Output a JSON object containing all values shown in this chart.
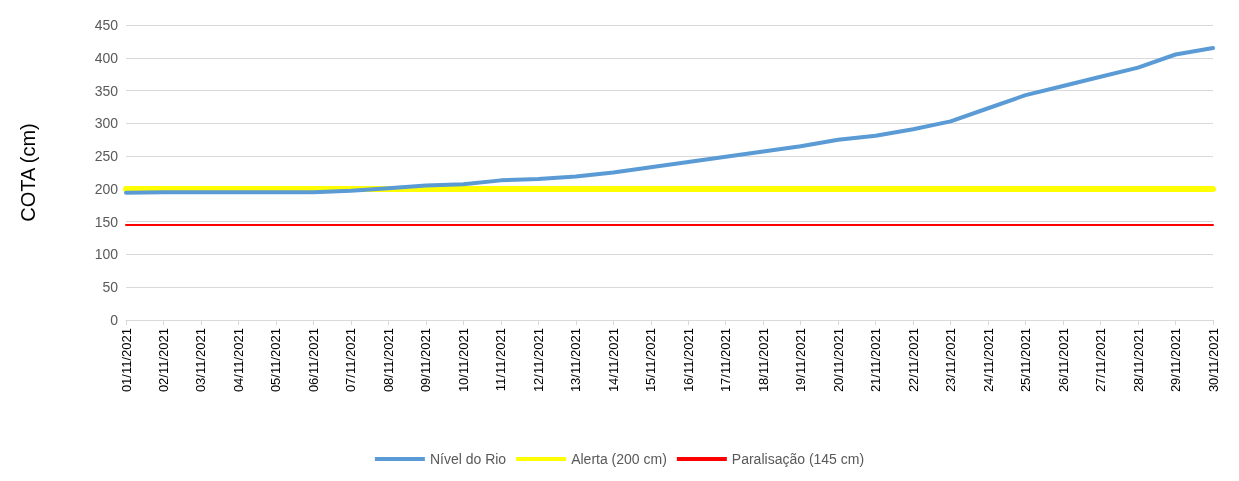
{
  "chart_data": {
    "type": "line",
    "ylabel": "COTA (cm)",
    "categories": [
      "01/11/2021",
      "02/11/2021",
      "03/11/2021",
      "04/11/2021",
      "05/11/2021",
      "06/11/2021",
      "07/11/2021",
      "08/11/2021",
      "09/11/2021",
      "10/11/2021",
      "11/11/2021",
      "12/11/2021",
      "13/11/2021",
      "14/11/2021",
      "15/11/2021",
      "16/11/2021",
      "17/11/2021",
      "18/11/2021",
      "19/11/2021",
      "20/11/2021",
      "21/11/2021",
      "22/11/2021",
      "23/11/2021",
      "24/11/2021",
      "25/11/2021",
      "26/11/2021",
      "27/11/2021",
      "28/11/2021",
      "29/11/2021",
      "30/11/2021"
    ],
    "series": [
      {
        "name": "Nível do Rio",
        "color": "#5b9bd5",
        "values": [
          194,
          195,
          195,
          195,
          195,
          195,
          197,
          201,
          205,
          207,
          213,
          215,
          219,
          225,
          233,
          241,
          249,
          257,
          265,
          275,
          281,
          291,
          303,
          323,
          343,
          357,
          371,
          385,
          405,
          415
        ]
      },
      {
        "name": "Alerta (200 cm)",
        "color": "#ffff00",
        "values": [
          200,
          200,
          200,
          200,
          200,
          200,
          200,
          200,
          200,
          200,
          200,
          200,
          200,
          200,
          200,
          200,
          200,
          200,
          200,
          200,
          200,
          200,
          200,
          200,
          200,
          200,
          200,
          200,
          200,
          200
        ]
      },
      {
        "name": "Paralisação (145 cm)",
        "color": "#ff0000",
        "values": [
          145,
          145,
          145,
          145,
          145,
          145,
          145,
          145,
          145,
          145,
          145,
          145,
          145,
          145,
          145,
          145,
          145,
          145,
          145,
          145,
          145,
          145,
          145,
          145,
          145,
          145,
          145,
          145,
          145,
          145
        ]
      }
    ],
    "ylim": [
      0,
      450
    ],
    "yticks": [
      0,
      50,
      100,
      150,
      200,
      250,
      300,
      350,
      400,
      450
    ],
    "grid": "y",
    "legend": "bottom",
    "marker": "none",
    "line_style": "solid"
  }
}
